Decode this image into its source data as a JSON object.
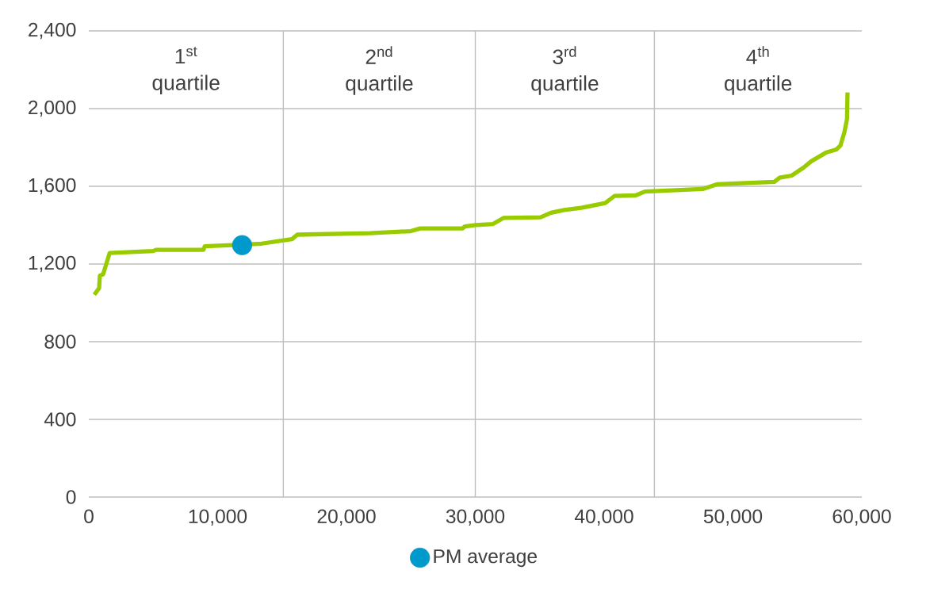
{
  "chart_data": {
    "type": "line",
    "xlim": [
      0,
      60000
    ],
    "ylim": [
      0,
      2400
    ],
    "xticks": [
      {
        "value": 0,
        "label": "0"
      },
      {
        "value": 10000,
        "label": "10,000"
      },
      {
        "value": 20000,
        "label": "20,000"
      },
      {
        "value": 30000,
        "label": "30,000"
      },
      {
        "value": 40000,
        "label": "40,000"
      },
      {
        "value": 50000,
        "label": "50,000"
      },
      {
        "value": 60000,
        "label": "60,000"
      }
    ],
    "yticks": [
      {
        "value": 0,
        "label": "0"
      },
      {
        "value": 400,
        "label": "400"
      },
      {
        "value": 800,
        "label": "800"
      },
      {
        "value": 1200,
        "label": "1,200"
      },
      {
        "value": 1600,
        "label": "1,600"
      },
      {
        "value": 2000,
        "label": "2,000"
      },
      {
        "value": 2400,
        "label": "2,400"
      }
    ],
    "grid": "y",
    "legend": "bottom",
    "series": [
      {
        "color": "#99cc00",
        "marker": "none",
        "x": [
          430,
          800,
          860,
          1110,
          1620,
          5000,
          5210,
          8900,
          9000,
          11160,
          13420,
          15770,
          16180,
          21830,
          25000,
          25720,
          29000,
          29200,
          30030,
          31370,
          32180,
          35060,
          35870,
          36900,
          38230,
          40080,
          40800,
          42440,
          43160,
          47650,
          48800,
          53210,
          53620,
          54550,
          55470,
          56080,
          57210,
          58030,
          58340,
          58650,
          58850,
          58890
        ],
        "values": [
          1042,
          1076,
          1140,
          1147,
          1257,
          1267,
          1273,
          1273,
          1291,
          1297,
          1305,
          1328,
          1351,
          1359,
          1369,
          1383,
          1383,
          1393,
          1400,
          1406,
          1437,
          1440,
          1464,
          1478,
          1489,
          1514,
          1550,
          1553,
          1573,
          1586,
          1611,
          1623,
          1644,
          1655,
          1696,
          1729,
          1773,
          1790,
          1810,
          1879,
          1947,
          2083
        ]
      },
      {
        "type": "scatter",
        "name": "PM average",
        "color": "#0099cc",
        "marker": "circle",
        "x": [
          11900
        ],
        "values": [
          1297
        ]
      }
    ],
    "ref_lines": [
      {
        "axis": "x",
        "value": 15100,
        "color": "#bfbfbf"
      },
      {
        "axis": "x",
        "value": 30000,
        "color": "#bfbfbf"
      },
      {
        "axis": "x",
        "value": 43900,
        "color": "#bfbfbf"
      }
    ],
    "annotations": [
      "1$^{st}$ quartile",
      "2$^{nd}$ quartile",
      "3$^{rd}$ quartile",
      "4$^{th}$ quartile"
    ]
  }
}
